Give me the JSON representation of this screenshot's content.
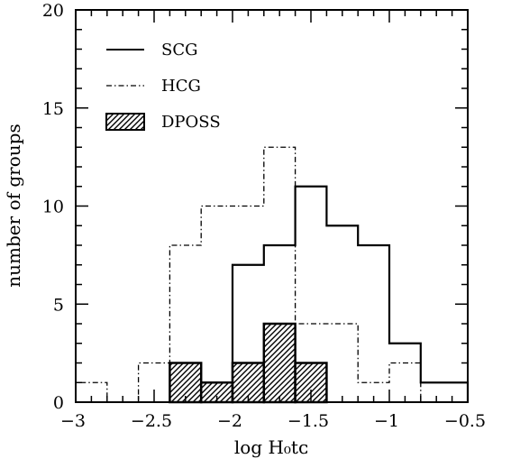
{
  "chart_data": {
    "type": "histogram",
    "xlabel": "log H₀tᴄ",
    "ylabel": "number of groups",
    "xlim": [
      -3,
      -0.5
    ],
    "ylim": [
      0,
      20
    ],
    "bin_width": 0.2,
    "x_ticks": [
      -3,
      -2.5,
      -2,
      -1.5,
      -1,
      -0.5
    ],
    "x_tick_labels": [
      "−3",
      "−2.5",
      "−2",
      "−1.5",
      "−1",
      "−0.5"
    ],
    "y_ticks": [
      0,
      5,
      10,
      15,
      20
    ],
    "y_tick_labels": [
      "0",
      "5",
      "10",
      "15",
      "20"
    ],
    "legend_position": "top-left",
    "series": [
      {
        "name": "SCG",
        "style": "solid",
        "bins": [
          {
            "x0": -2.0,
            "x1": -1.8,
            "count": 7
          },
          {
            "x0": -1.8,
            "x1": -1.6,
            "count": 8
          },
          {
            "x0": -1.6,
            "x1": -1.4,
            "count": 11
          },
          {
            "x0": -1.4,
            "x1": -1.2,
            "count": 9
          },
          {
            "x0": -1.2,
            "x1": -1.0,
            "count": 8
          },
          {
            "x0": -1.0,
            "x1": -0.8,
            "count": 3
          },
          {
            "x0": -0.8,
            "x1": -0.5,
            "count": 1
          }
        ]
      },
      {
        "name": "HCG",
        "style": "dash-dot",
        "bins": [
          {
            "x0": -3.0,
            "x1": -2.8,
            "count": 1
          },
          {
            "x0": -2.8,
            "x1": -2.6,
            "count": 0
          },
          {
            "x0": -2.6,
            "x1": -2.4,
            "count": 2
          },
          {
            "x0": -2.4,
            "x1": -2.2,
            "count": 8
          },
          {
            "x0": -2.2,
            "x1": -2.0,
            "count": 10
          },
          {
            "x0": -2.0,
            "x1": -1.8,
            "count": 10
          },
          {
            "x0": -1.8,
            "x1": -1.6,
            "count": 13
          },
          {
            "x0": -1.6,
            "x1": -1.4,
            "count": 4
          },
          {
            "x0": -1.4,
            "x1": -1.2,
            "count": 4
          },
          {
            "x0": -1.2,
            "x1": -1.0,
            "count": 1
          },
          {
            "x0": -1.0,
            "x1": -0.8,
            "count": 2
          }
        ]
      },
      {
        "name": "DPOSS",
        "style": "hatched",
        "bins": [
          {
            "x0": -2.4,
            "x1": -2.2,
            "count": 2
          },
          {
            "x0": -2.2,
            "x1": -2.0,
            "count": 1
          },
          {
            "x0": -2.0,
            "x1": -1.8,
            "count": 2
          },
          {
            "x0": -1.8,
            "x1": -1.6,
            "count": 4
          },
          {
            "x0": -1.6,
            "x1": -1.4,
            "count": 2
          }
        ]
      }
    ]
  }
}
